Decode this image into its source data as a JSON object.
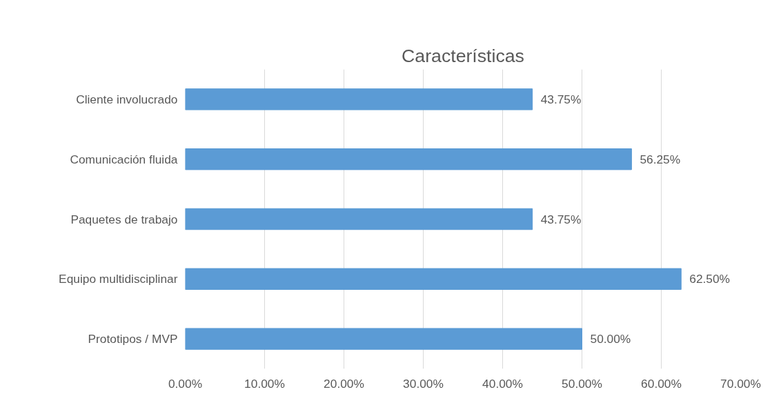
{
  "chart_data": {
    "type": "bar",
    "orientation": "horizontal",
    "title": "Características",
    "categories": [
      "Cliente involucrado",
      "Comunicación fluida",
      "Paquetes de trabajo",
      "Equipo multidisciplinar",
      "Prototipos / MVP"
    ],
    "values": [
      43.75,
      56.25,
      43.75,
      62.5,
      50.0
    ],
    "value_labels": [
      "43.75%",
      "56.25%",
      "43.75%",
      "62.50%",
      "50.00%"
    ],
    "color": "#5b9bd5",
    "xlim": [
      0,
      70
    ],
    "xticks": [
      {
        "value": 0,
        "label": "0.00%"
      },
      {
        "value": 10,
        "label": "10.00%"
      },
      {
        "value": 20,
        "label": "20.00%"
      },
      {
        "value": 30,
        "label": "30.00%"
      },
      {
        "value": 40,
        "label": "40.00%"
      },
      {
        "value": 50,
        "label": "50.00%"
      },
      {
        "value": 60,
        "label": "60.00%"
      },
      {
        "value": 70,
        "label": "70.00%"
      }
    ],
    "grid": "x"
  }
}
